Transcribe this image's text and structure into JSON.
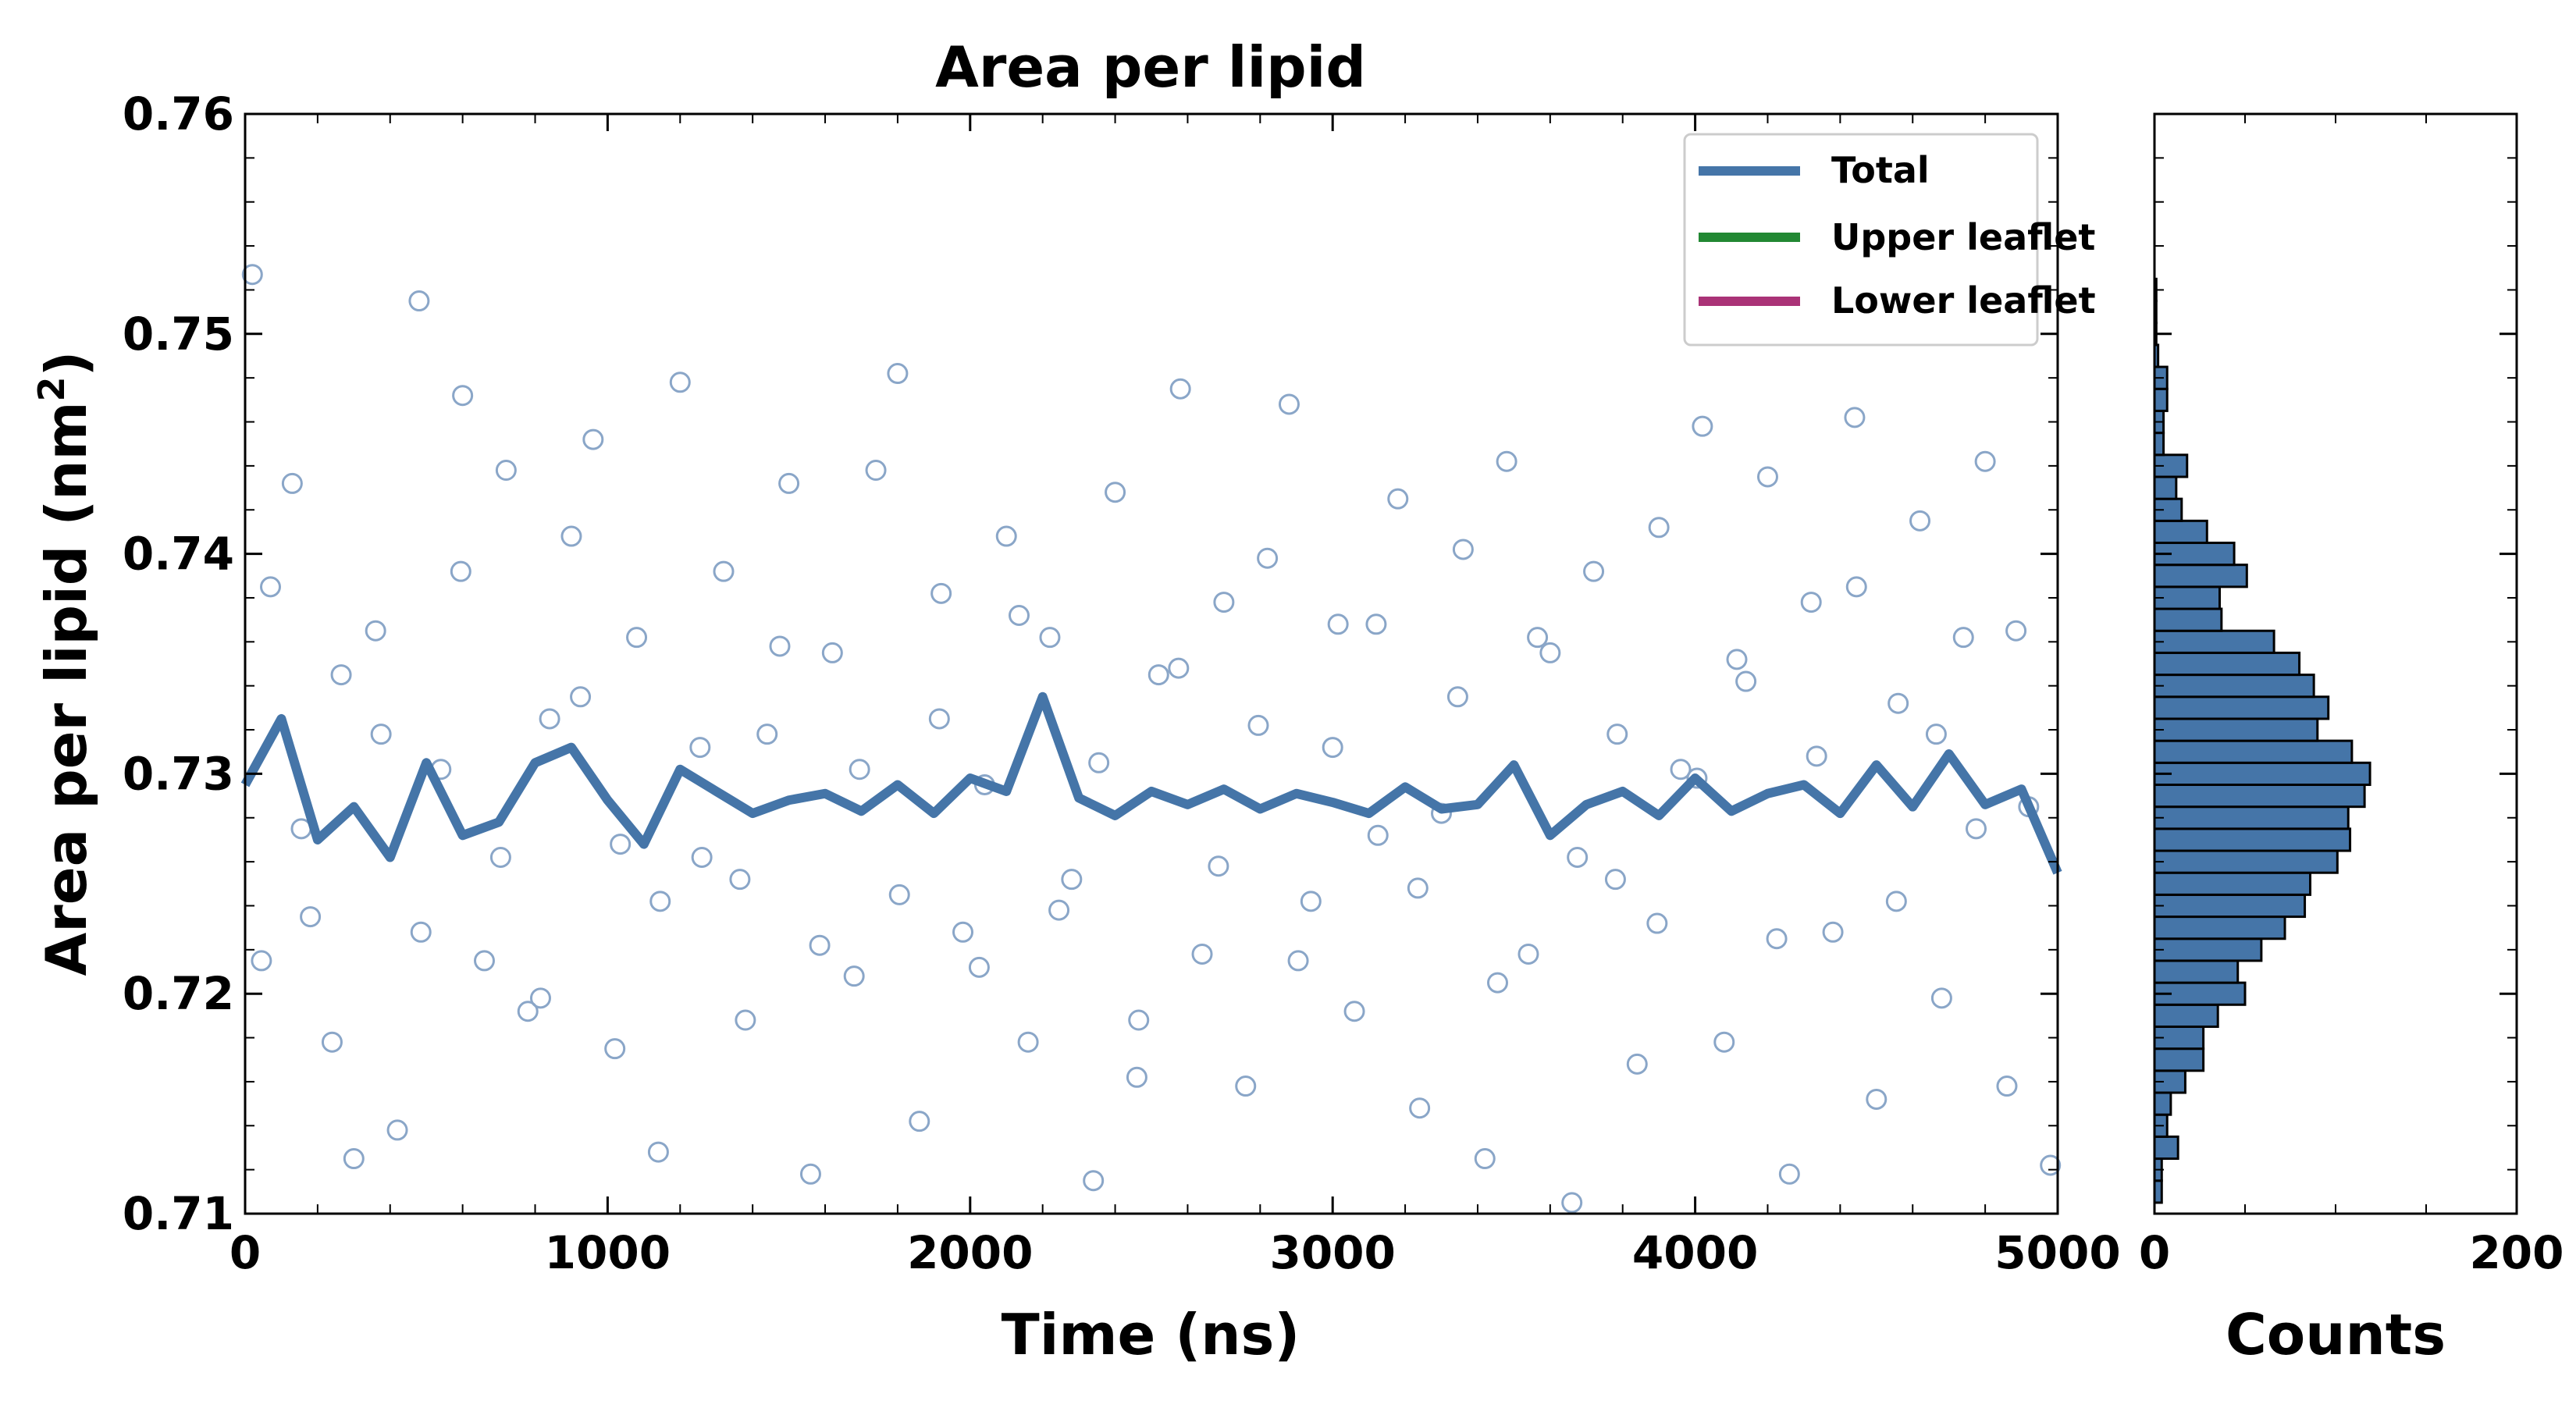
{
  "chart_data": [
    {
      "type": "scatter",
      "title": "Area per lipid",
      "xlabel": "Time (ns)",
      "ylabel_main": "Area per lipid (nm",
      "ylabel_sup": "2",
      "ylabel_close": ")",
      "xlim": [
        0,
        5000
      ],
      "ylim": [
        0.71,
        0.76
      ],
      "x_ticks": [
        0,
        1000,
        2000,
        3000,
        4000,
        5000
      ],
      "x_tick_labels": [
        "0",
        "1000",
        "2000",
        "3000",
        "4000",
        "5000"
      ],
      "y_ticks": [
        0.71,
        0.72,
        0.73,
        0.74,
        0.75,
        0.76
      ],
      "y_tick_labels": [
        "0.71",
        "0.72",
        "0.73",
        "0.74",
        "0.75",
        "0.76"
      ],
      "grid": false,
      "legend": {
        "position": "top-right",
        "entries": [
          {
            "label": "Total",
            "color": "#4575a8"
          },
          {
            "label": "Upper leaflet",
            "color": "#228833"
          },
          {
            "label": "Lower leaflet",
            "color": "#aa3377"
          }
        ]
      },
      "series": [
        {
          "name": "Total",
          "kind": "line",
          "color": "#4575a8",
          "x": [
            0,
            100,
            200,
            300,
            400,
            500,
            600,
            700,
            800,
            900,
            1000,
            1100,
            1200,
            1300,
            1400,
            1500,
            1600,
            1700,
            1800,
            1900,
            2000,
            2100,
            2200,
            2300,
            2400,
            2500,
            2600,
            2700,
            2800,
            2900,
            3000,
            3100,
            3200,
            3300,
            3400,
            3500,
            3600,
            3700,
            3800,
            3900,
            4000,
            4100,
            4200,
            4300,
            4400,
            4500,
            4600,
            4700,
            4800,
            4900,
            5000
          ],
          "y": [
            0.7295,
            0.7325,
            0.727,
            0.7285,
            0.7262,
            0.7305,
            0.7272,
            0.7278,
            0.7305,
            0.7312,
            0.7288,
            0.7268,
            0.7302,
            0.7292,
            0.7282,
            0.7288,
            0.7291,
            0.7283,
            0.7295,
            0.7282,
            0.7298,
            0.7292,
            0.7335,
            0.7289,
            0.7281,
            0.7292,
            0.7286,
            0.7293,
            0.7284,
            0.7291,
            0.7287,
            0.7282,
            0.7294,
            0.7284,
            0.7286,
            0.7304,
            0.7272,
            0.7286,
            0.7292,
            0.7281,
            0.7298,
            0.7283,
            0.7291,
            0.7295,
            0.7282,
            0.7304,
            0.7285,
            0.7309,
            0.7286,
            0.7293,
            0.7255
          ]
        },
        {
          "name": "",
          "kind": "scatter",
          "color": "#4575a8",
          "note_marker": "open-circle",
          "x": [
            20,
            70,
            130,
            180,
            240,
            300,
            360,
            420,
            480,
            540,
            600,
            660,
            720,
            780,
            840,
            900,
            960,
            1020,
            1080,
            1140,
            1200,
            1260,
            1320,
            1380,
            1440,
            1500,
            1560,
            1620,
            1680,
            1740,
            1800,
            1860,
            1920,
            1980,
            2040,
            2100,
            2160,
            2220,
            2280,
            2340,
            2400,
            2460,
            2520,
            2580,
            2640,
            2700,
            2760,
            2820,
            2880,
            2940,
            3000,
            3060,
            3120,
            3180,
            3240,
            3300,
            3360,
            3420,
            3480,
            3540,
            3600,
            3660,
            3720,
            3780,
            3840,
            3900,
            3960,
            4020,
            4080,
            4140,
            4200,
            4260,
            4320,
            4380,
            4440,
            4500,
            4560,
            4620,
            4680,
            4740,
            4800,
            4860,
            4920,
            4980,
            45,
            155,
            265,
            375,
            485,
            595,
            705,
            815,
            925,
            1035,
            1145,
            1255,
            1365,
            1475,
            1585,
            1695,
            1805,
            1915,
            2025,
            2135,
            2245,
            2355,
            2465,
            2575,
            2685,
            2795,
            2905,
            3015,
            3125,
            3235,
            3345,
            3455,
            3565,
            3675,
            3785,
            3895,
            4005,
            4115,
            4225,
            4335,
            4445,
            4555,
            4665,
            4775,
            4885
          ],
          "y": [
            0.7527,
            0.7385,
            0.7432,
            0.7235,
            0.7178,
            0.7125,
            0.7365,
            0.7138,
            0.7515,
            0.7302,
            0.7472,
            0.7215,
            0.7438,
            0.7192,
            0.7325,
            0.7408,
            0.7452,
            0.7175,
            0.7362,
            0.7128,
            0.7478,
            0.7262,
            0.7392,
            0.7188,
            0.7318,
            0.7432,
            0.7118,
            0.7355,
            0.7208,
            0.7438,
            0.7482,
            0.7142,
            0.7382,
            0.7228,
            0.7295,
            0.7408,
            0.7178,
            0.7362,
            0.7252,
            0.7115,
            0.7428,
            0.7162,
            0.7345,
            0.7475,
            0.7218,
            0.7378,
            0.7158,
            0.7398,
            0.7468,
            0.7242,
            0.7312,
            0.7192,
            0.7368,
            0.7425,
            0.7148,
            0.7282,
            0.7402,
            0.7125,
            0.7442,
            0.7218,
            0.7355,
            0.7105,
            0.7392,
            0.7252,
            0.7168,
            0.7412,
            0.7302,
            0.7458,
            0.7178,
            0.7342,
            0.7435,
            0.7118,
            0.7378,
            0.7228,
            0.7462,
            0.7152,
            0.7332,
            0.7415,
            0.7198,
            0.7362,
            0.7442,
            0.7158,
            0.7285,
            0.7122,
            0.7215,
            0.7275,
            0.7345,
            0.7318,
            0.7228,
            0.7392,
            0.7262,
            0.7198,
            0.7335,
            0.7268,
            0.7242,
            0.7312,
            0.7252,
            0.7358,
            0.7222,
            0.7302,
            0.7245,
            0.7325,
            0.7212,
            0.7372,
            0.7238,
            0.7305,
            0.7188,
            0.7348,
            0.7258,
            0.7322,
            0.7215,
            0.7368,
            0.7272,
            0.7248,
            0.7335,
            0.7205,
            0.7362,
            0.7262,
            0.7318,
            0.7232,
            0.7298,
            0.7352,
            0.7225,
            0.7308,
            0.7385,
            0.7242,
            0.7318,
            0.7275,
            0.7365
          ]
        }
      ]
    },
    {
      "type": "bar",
      "orientation": "horizontal",
      "xlabel": "Counts",
      "xlim": [
        0,
        200
      ],
      "x_ticks": [
        0,
        200
      ],
      "x_tick_labels": [
        "0",
        "200"
      ],
      "ylim": [
        0.71,
        0.76
      ],
      "bin_width": 0.001,
      "color": "#4575a8",
      "bins": [
        0.711,
        0.712,
        0.713,
        0.714,
        0.715,
        0.716,
        0.717,
        0.718,
        0.719,
        0.72,
        0.721,
        0.722,
        0.723,
        0.724,
        0.725,
        0.726,
        0.727,
        0.728,
        0.729,
        0.73,
        0.731,
        0.732,
        0.733,
        0.734,
        0.735,
        0.736,
        0.737,
        0.738,
        0.739,
        0.74,
        0.741,
        0.742,
        0.743,
        0.744,
        0.745,
        0.746,
        0.747,
        0.748,
        0.749,
        0.75,
        0.751,
        0.752
      ],
      "counts": [
        4,
        4,
        13,
        7,
        9,
        17,
        27,
        27,
        35,
        50,
        46,
        59,
        72,
        83,
        86,
        101,
        108,
        107,
        116,
        119,
        109,
        90,
        96,
        88,
        80,
        66,
        37,
        36,
        51,
        44,
        29,
        15,
        12,
        18,
        5,
        5,
        7,
        7,
        2,
        1,
        1,
        1
      ]
    }
  ]
}
